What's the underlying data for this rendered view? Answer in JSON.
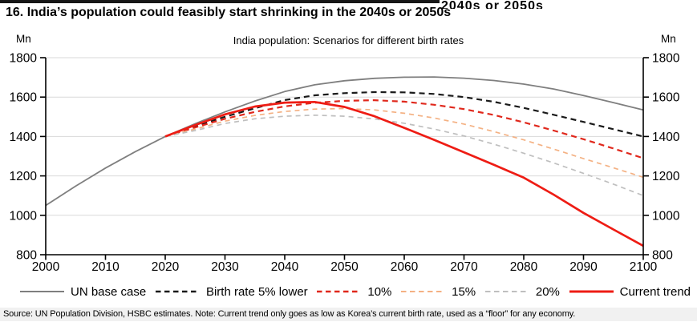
{
  "page": {
    "clipped_text_above": "2040s or 2050s",
    "title": "16. India’s population could feasibly start shrinking in the 2040s or 2050s"
  },
  "chart": {
    "subtitle": "India population: Scenarios for different birth rates",
    "unit_left": "Mn",
    "unit_right": "Mn"
  },
  "chart_data": {
    "type": "line",
    "title": "India population: Scenarios for different birth rates",
    "unit": "Mn",
    "xlim": [
      2000,
      2100
    ],
    "ylim": [
      800,
      1800
    ],
    "x_ticks": [
      2000,
      2010,
      2020,
      2030,
      2040,
      2050,
      2060,
      2070,
      2080,
      2090,
      2100
    ],
    "y_ticks": [
      800,
      1000,
      1200,
      1400,
      1600,
      1800
    ],
    "grid": "horizontal",
    "grid_color": "#d9d9d9",
    "axis_color": "#000000",
    "legend_position": "bottom",
    "series": [
      {
        "name": "UN base case",
        "color": "#7f7f7f",
        "style": "solid",
        "width": 1.8,
        "x": [
          2000,
          2005,
          2010,
          2015,
          2020,
          2025,
          2030,
          2035,
          2040,
          2045,
          2050,
          2055,
          2060,
          2065,
          2070,
          2075,
          2080,
          2085,
          2090,
          2095,
          2100
        ],
        "values": [
          1050,
          1148,
          1240,
          1323,
          1400,
          1465,
          1525,
          1580,
          1628,
          1662,
          1683,
          1695,
          1701,
          1702,
          1696,
          1684,
          1666,
          1641,
          1608,
          1572,
          1535
        ]
      },
      {
        "name": "Birth rate 5% lower",
        "color": "#1a1a1a",
        "style": "dashed",
        "dash": "7 5",
        "width": 2.2,
        "x": [
          2020,
          2025,
          2030,
          2035,
          2040,
          2045,
          2050,
          2055,
          2060,
          2065,
          2070,
          2075,
          2080,
          2085,
          2090,
          2095,
          2100
        ],
        "values": [
          1400,
          1452,
          1500,
          1543,
          1585,
          1609,
          1620,
          1625,
          1624,
          1616,
          1600,
          1576,
          1545,
          1510,
          1474,
          1437,
          1400
        ]
      },
      {
        "name": "10%",
        "color": "#e0281c",
        "style": "dashed",
        "dash": "7 5",
        "width": 2.2,
        "x": [
          2020,
          2025,
          2030,
          2035,
          2040,
          2045,
          2050,
          2055,
          2060,
          2065,
          2070,
          2075,
          2080,
          2085,
          2090,
          2095,
          2100
        ],
        "values": [
          1400,
          1446,
          1490,
          1525,
          1553,
          1571,
          1581,
          1584,
          1577,
          1561,
          1539,
          1509,
          1472,
          1430,
          1386,
          1339,
          1290
        ]
      },
      {
        "name": "15%",
        "color": "#f4b183",
        "style": "dashed",
        "dash": "6 5",
        "width": 1.7,
        "x": [
          2020,
          2025,
          2030,
          2035,
          2040,
          2045,
          2050,
          2055,
          2060,
          2065,
          2070,
          2075,
          2080,
          2085,
          2090,
          2095,
          2100
        ],
        "values": [
          1400,
          1438,
          1478,
          1507,
          1527,
          1539,
          1542,
          1535,
          1518,
          1494,
          1463,
          1425,
          1383,
          1336,
          1288,
          1241,
          1193
        ]
      },
      {
        "name": "20%",
        "color": "#bfbfbf",
        "style": "dashed",
        "dash": "6 5",
        "width": 1.7,
        "x": [
          2020,
          2025,
          2030,
          2035,
          2040,
          2045,
          2050,
          2055,
          2060,
          2065,
          2070,
          2075,
          2080,
          2085,
          2090,
          2095,
          2100
        ],
        "values": [
          1400,
          1430,
          1466,
          1490,
          1503,
          1508,
          1503,
          1489,
          1467,
          1438,
          1403,
          1361,
          1315,
          1266,
          1213,
          1158,
          1100
        ]
      },
      {
        "name": "Current trend",
        "color": "#ee1c14",
        "style": "solid",
        "width": 2.7,
        "x": [
          2020,
          2025,
          2030,
          2035,
          2040,
          2045,
          2050,
          2055,
          2060,
          2065,
          2070,
          2075,
          2080,
          2085,
          2090,
          2095,
          2100
        ],
        "values": [
          1400,
          1458,
          1512,
          1552,
          1572,
          1575,
          1550,
          1503,
          1444,
          1383,
          1320,
          1256,
          1191,
          1105,
          1012,
          928,
          845
        ]
      }
    ]
  },
  "source_note": "Source: UN Population Division, HSBC estimates. Note: Current trend only goes as low as Korea’s current birth rate, used as a “floor” for any economy."
}
